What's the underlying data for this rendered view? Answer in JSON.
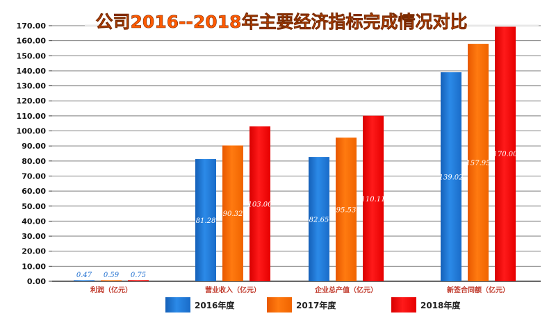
{
  "chart_data": {
    "type": "bar",
    "title": "公司2016--2018年主要经济指标完成情况对比",
    "categories": [
      "利润（亿元）",
      "营业收入（亿元）",
      "企业总产值（亿元）",
      "新签合同额（亿元）"
    ],
    "series": [
      {
        "name": "2016年度",
        "color": "#1f77d4",
        "values": [
          0.47,
          81.28,
          82.65,
          139.02
        ],
        "labels": [
          "0.47",
          "81.28",
          "82.65",
          "139.02"
        ]
      },
      {
        "name": "2017年度",
        "color": "#ff6a00",
        "values": [
          0.59,
          90.32,
          95.53,
          157.95
        ],
        "labels": [
          "0.59",
          "90.32",
          "95.53",
          "157.95"
        ]
      },
      {
        "name": "2018年度",
        "color": "#ff0000",
        "values": [
          0.75,
          103.0,
          110.11,
          170.0
        ],
        "labels": [
          "0.75",
          "103.00",
          "110.11",
          "170.00"
        ]
      }
    ],
    "ylim": [
      0,
      170
    ],
    "yticks": [
      0,
      10,
      20,
      30,
      40,
      50,
      60,
      70,
      80,
      90,
      100,
      110,
      120,
      130,
      140,
      150,
      160,
      170
    ],
    "ytick_labels": [
      "0.00",
      "10.00",
      "20.00",
      "30.00",
      "40.00",
      "50.00",
      "60.00",
      "70.00",
      "80.00",
      "90.00",
      "100.00",
      "110.00",
      "120.00",
      "130.00",
      "140.00",
      "150.00",
      "160.00",
      "170.00"
    ],
    "grid": true,
    "legend_position": "bottom",
    "title_color": "#ff5a00"
  }
}
